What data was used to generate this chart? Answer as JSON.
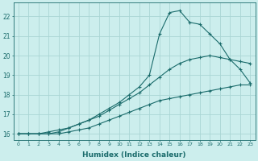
{
  "xlabel": "Humidex (Indice chaleur)",
  "bg_color": "#cceeed",
  "grid_color": "#aad6d4",
  "line_color": "#1a6b6b",
  "xlim": [
    -0.5,
    23.5
  ],
  "ylim": [
    15.7,
    22.7
  ],
  "yticks": [
    16,
    17,
    18,
    19,
    20,
    21,
    22
  ],
  "xticks": [
    0,
    1,
    2,
    3,
    4,
    5,
    6,
    7,
    8,
    9,
    10,
    11,
    12,
    13,
    14,
    15,
    16,
    17,
    18,
    19,
    20,
    21,
    22,
    23
  ],
  "line1_x": [
    0,
    1,
    2,
    3,
    4,
    5,
    6,
    7,
    8,
    9,
    10,
    11,
    12,
    13,
    14,
    15,
    16,
    17,
    18,
    19,
    20,
    21,
    22,
    23
  ],
  "line1_y": [
    16.0,
    16.0,
    16.0,
    16.0,
    16.0,
    16.1,
    16.2,
    16.3,
    16.5,
    16.7,
    16.9,
    17.1,
    17.3,
    17.5,
    17.7,
    17.8,
    17.9,
    18.0,
    18.1,
    18.2,
    18.3,
    18.4,
    18.5,
    18.5
  ],
  "line2_x": [
    0,
    1,
    2,
    3,
    4,
    5,
    6,
    7,
    8,
    9,
    10,
    11,
    12,
    13,
    14,
    15,
    16,
    17,
    18,
    19,
    20,
    21,
    22,
    23
  ],
  "line2_y": [
    16.0,
    16.0,
    16.0,
    16.0,
    16.1,
    16.3,
    16.5,
    16.7,
    16.9,
    17.2,
    17.5,
    17.8,
    18.1,
    18.5,
    18.9,
    19.3,
    19.6,
    19.8,
    19.9,
    20.0,
    19.9,
    19.8,
    19.7,
    19.6
  ],
  "line3_x": [
    0,
    1,
    2,
    3,
    4,
    5,
    6,
    7,
    8,
    9,
    10,
    11,
    12,
    13,
    14,
    15,
    16,
    17,
    18,
    19,
    20,
    21,
    22,
    23
  ],
  "line3_y": [
    16.0,
    16.0,
    16.0,
    16.1,
    16.2,
    16.3,
    16.5,
    16.7,
    17.0,
    17.3,
    17.6,
    18.0,
    18.4,
    19.0,
    21.1,
    22.2,
    22.3,
    21.7,
    21.6,
    21.1,
    20.6,
    19.8,
    19.3,
    18.6
  ]
}
